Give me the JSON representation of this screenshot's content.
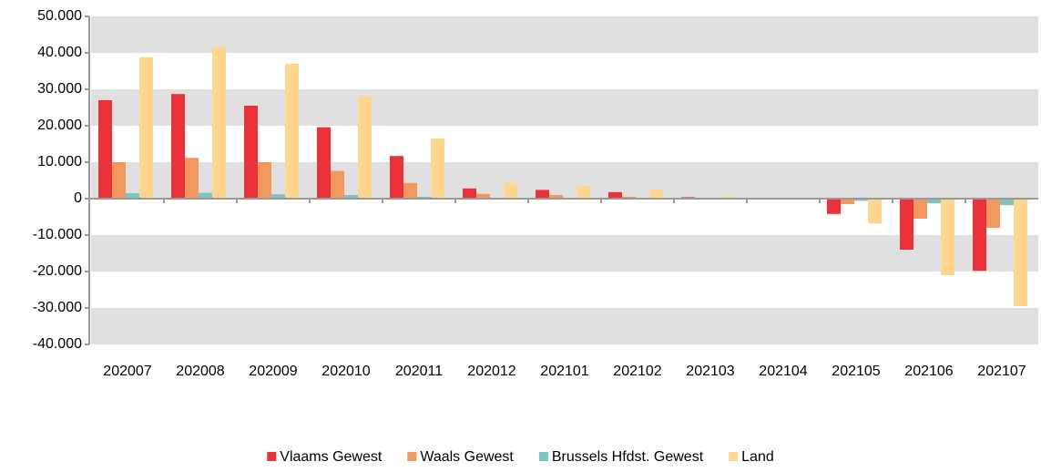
{
  "chart_data": {
    "type": "bar",
    "categories": [
      "202007",
      "202008",
      "202009",
      "202010",
      "202011",
      "202012",
      "202101",
      "202102",
      "202103",
      "202104",
      "202105",
      "202106",
      "202107"
    ],
    "series": [
      {
        "name": "Vlaams Gewest",
        "color": "#e8333a",
        "values": [
          27000,
          28700,
          25500,
          19600,
          11700,
          2800,
          2400,
          1800,
          400,
          0,
          -4200,
          -14000,
          -19800
        ]
      },
      {
        "name": "Waals Gewest",
        "color": "#f0985e",
        "values": [
          10000,
          11200,
          10000,
          7600,
          4300,
          1300,
          1000,
          500,
          200,
          0,
          -1500,
          -5500,
          -8000
        ]
      },
      {
        "name": "Brussels Hfdst. Gewest",
        "color": "#7fc4c0",
        "values": [
          1500,
          1600,
          1200,
          1000,
          500,
          200,
          200,
          100,
          0,
          0,
          -600,
          -1300,
          -1800
        ]
      },
      {
        "name": "Land",
        "color": "#fdd68f",
        "values": [
          38800,
          41700,
          37000,
          28200,
          16500,
          4300,
          3500,
          2400,
          600,
          0,
          -6800,
          -21000,
          -29500
        ]
      }
    ],
    "ylim": [
      -40000,
      50000
    ],
    "yticks": [
      {
        "value": -40000,
        "label": "-40.000"
      },
      {
        "value": -30000,
        "label": "-30.000"
      },
      {
        "value": -20000,
        "label": "-20.000"
      },
      {
        "value": -10000,
        "label": "-10.000"
      },
      0,
      {
        "value": 10000,
        "label": "10.000"
      },
      {
        "value": 20000,
        "label": "20.000"
      },
      {
        "value": 30000,
        "label": "30.000"
      },
      {
        "value": 40000,
        "label": "40.000"
      },
      {
        "value": 50000,
        "label": "50.000"
      }
    ],
    "grid": true,
    "legend": "bottom"
  }
}
